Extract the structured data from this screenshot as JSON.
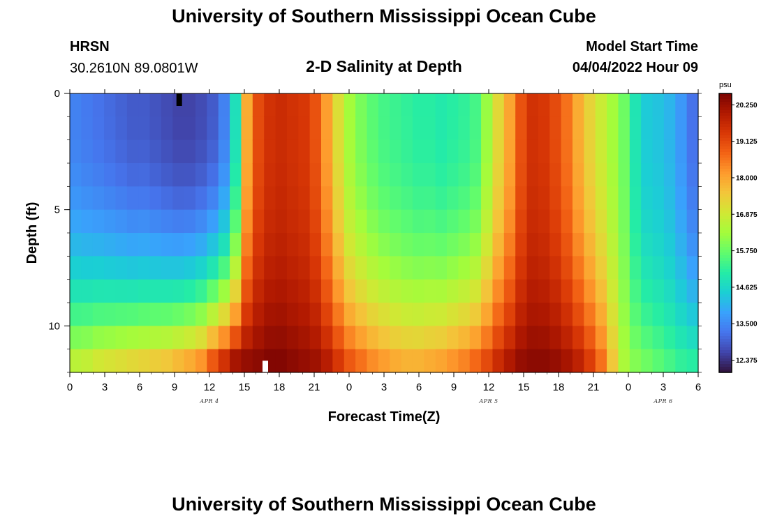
{
  "page": {
    "title_top": "University of Southern Mississippi Ocean Cube",
    "title_bottom": "University of Southern Mississippi Ocean Cube",
    "station_name": "HRSN",
    "station_coords": "30.2610N  89.0801W",
    "plot_title": "2-D Salinity at Depth",
    "model_label": "Model Start Time",
    "model_time": "04/04/2022 Hour 09"
  },
  "colors": {
    "stops": [
      "#30123b",
      "#4145ab",
      "#4675ed",
      "#39a2fc",
      "#1bcfd4",
      "#24eca6",
      "#61fc6c",
      "#a4fc3b",
      "#d1e834",
      "#f3c63a",
      "#fe9b2d",
      "#f36315",
      "#d93806",
      "#b11901",
      "#7a0402"
    ]
  },
  "chart_data": {
    "type": "heatmap",
    "xlabel": "Forecast Time(Z)",
    "ylabel": "Depth (ft)",
    "x_range_hours": [
      0,
      54
    ],
    "y_range_ft": [
      0,
      12
    ],
    "x_ticks": [
      {
        "hour": 0,
        "label": "0"
      },
      {
        "hour": 3,
        "label": "3"
      },
      {
        "hour": 6,
        "label": "6"
      },
      {
        "hour": 9,
        "label": "9"
      },
      {
        "hour": 12,
        "label": "12"
      },
      {
        "hour": 15,
        "label": "15"
      },
      {
        "hour": 18,
        "label": "18"
      },
      {
        "hour": 21,
        "label": "21"
      },
      {
        "hour": 24,
        "label": "0"
      },
      {
        "hour": 27,
        "label": "3"
      },
      {
        "hour": 30,
        "label": "6"
      },
      {
        "hour": 33,
        "label": "9"
      },
      {
        "hour": 36,
        "label": "12"
      },
      {
        "hour": 39,
        "label": "15"
      },
      {
        "hour": 42,
        "label": "18"
      },
      {
        "hour": 45,
        "label": "21"
      },
      {
        "hour": 48,
        "label": "0"
      },
      {
        "hour": 51,
        "label": "3"
      },
      {
        "hour": 54,
        "label": "6"
      }
    ],
    "y_ticks": [
      {
        "depth": 0,
        "label": "0"
      },
      {
        "depth": 5,
        "label": "5"
      },
      {
        "depth": 10,
        "label": "10"
      }
    ],
    "date_labels": [
      {
        "hour": 12,
        "label": "APR 4"
      },
      {
        "hour": 36,
        "label": "APR 5"
      },
      {
        "hour": 51,
        "label": "APR 6"
      }
    ],
    "colorbar": {
      "unit": "psu",
      "min": 12.0,
      "max": 20.6,
      "tick_values": [
        20.25,
        19.125,
        18.0,
        16.875,
        15.75,
        14.625,
        13.5,
        12.375
      ],
      "tick_labels": [
        "20.250",
        "19.125",
        "18.000",
        "16.875",
        "15.750",
        "14.625",
        "13.500",
        "12.375"
      ]
    },
    "grid": {
      "hours": 55,
      "depth_levels": 12
    },
    "surface_profile": [
      13.4,
      13.3,
      13.2,
      13.1,
      13.0,
      12.9,
      12.9,
      12.8,
      12.7,
      12.6,
      12.6,
      12.7,
      12.9,
      13.4,
      14.8,
      17.9,
      19.1,
      19.5,
      19.6,
      19.5,
      19.4,
      19.0,
      18.1,
      17.1,
      16.3,
      15.9,
      15.6,
      15.4,
      15.3,
      15.2,
      15.1,
      15.1,
      15.0,
      15.1,
      15.2,
      15.4,
      16.2,
      17.2,
      18.0,
      19.0,
      19.5,
      19.4,
      19.1,
      18.6,
      17.9,
      17.3,
      16.8,
      16.3,
      15.8,
      14.9,
      14.4,
      14.3,
      14.1,
      13.7,
      13.2
    ],
    "bottom_profile": [
      16.6,
      16.7,
      16.9,
      17.0,
      17.1,
      17.2,
      17.3,
      17.4,
      17.5,
      17.7,
      17.9,
      18.2,
      18.9,
      19.5,
      20.1,
      20.3,
      20.4,
      20.5,
      20.5,
      20.4,
      20.3,
      20.2,
      19.9,
      19.4,
      18.9,
      18.6,
      18.3,
      18.1,
      17.9,
      17.8,
      17.8,
      17.9,
      18.0,
      18.2,
      18.4,
      18.7,
      19.1,
      19.6,
      20.0,
      20.3,
      20.4,
      20.4,
      20.3,
      20.1,
      19.8,
      19.3,
      18.6,
      17.5,
      16.4,
      16.0,
      15.8,
      15.6,
      15.4,
      15.2,
      15.1
    ],
    "depth_mix_exponent": 2.4,
    "markers": [
      {
        "hour": 9.4,
        "depth": 0,
        "color": "#000000"
      },
      {
        "hour": 16.8,
        "depth": 11.5,
        "color": "#ffffff"
      }
    ]
  }
}
